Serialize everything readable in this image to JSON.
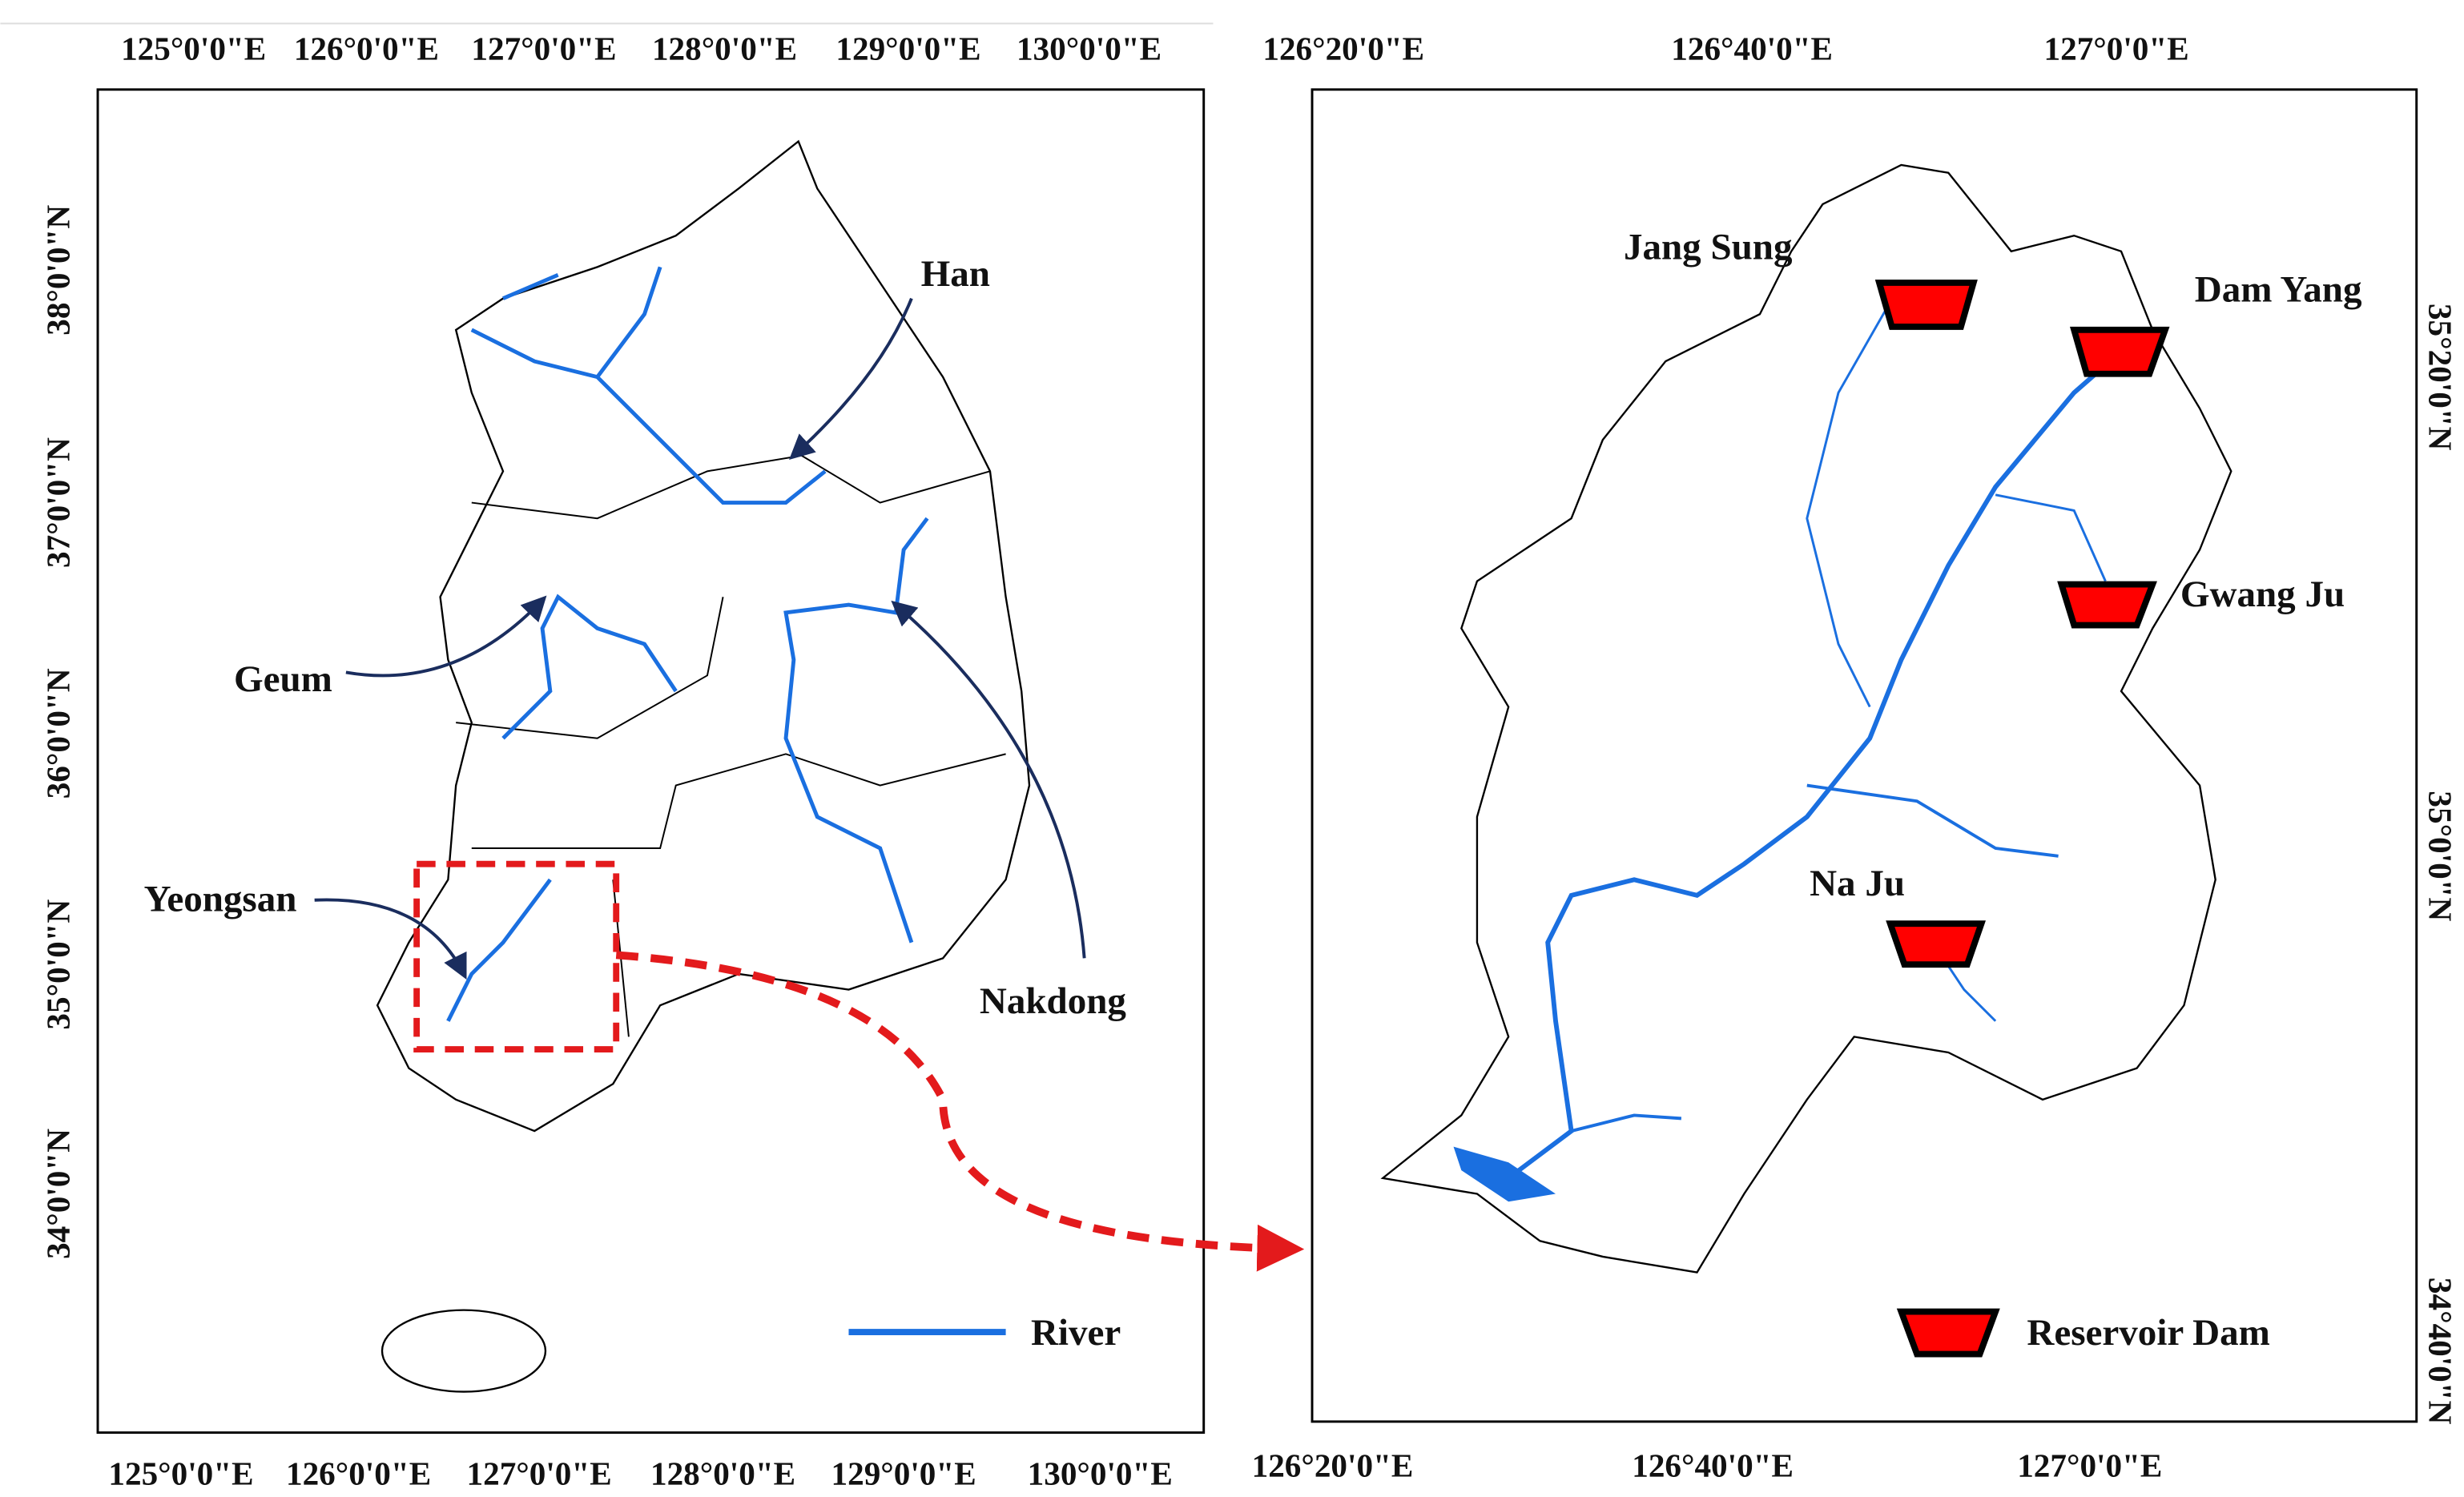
{
  "left_map": {
    "x_top_labels": [
      "125°0'0\"E",
      "126°0'0\"E",
      "127°0'0\"E",
      "128°0'0\"E",
      "129°0'0\"E",
      "130°0'0\"E"
    ],
    "x_bottom_labels": [
      "125°0'0\"E",
      "126°0'0\"E",
      "127°0'0\"E",
      "128°0'0\"E",
      "129°0'0\"E",
      "130°0'0\"E"
    ],
    "y_labels": [
      "38°0'0\"N",
      "37°0'0\"N",
      "36°0'0\"N",
      "35°0'0\"N",
      "34°0'0\"N"
    ],
    "rivers": [
      "Han",
      "Geum",
      "Yeongsan",
      "Nakdong"
    ],
    "legend": "River"
  },
  "right_map": {
    "x_top_labels": [
      "126°20'0\"E",
      "126°40'0\"E",
      "127°0'0\"E"
    ],
    "x_bottom_labels": [
      "126°20'0\"E",
      "126°40'0\"E",
      "127°0'0\"E"
    ],
    "y_labels": [
      "35°20'0\"N",
      "35°0'0\"N",
      "34°40'0\"N"
    ],
    "dams": [
      "Jang Sung",
      "Dam Yang",
      "Gwang Ju",
      "Na Ju"
    ],
    "legend": "Reservoir Dam"
  }
}
